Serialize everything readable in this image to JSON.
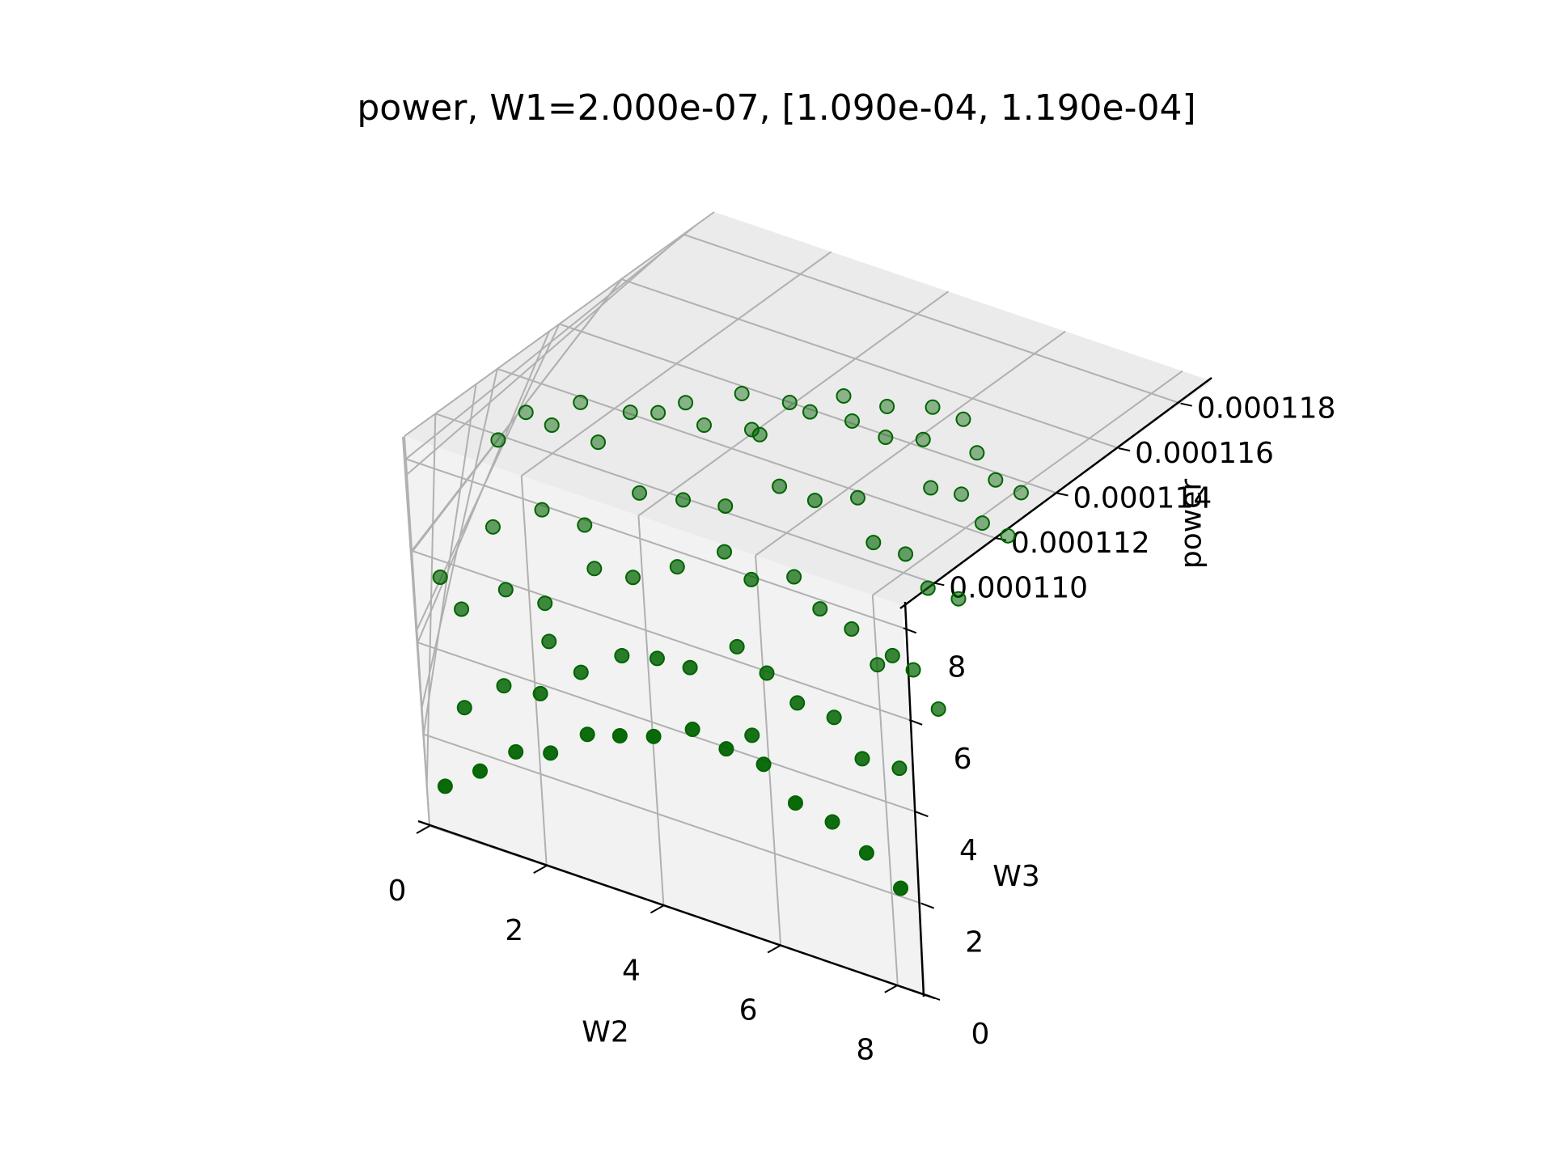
{
  "chart_data": {
    "type": "scatter",
    "projection": "3d",
    "title": "power, W1=2.000e-07, [1.090e-04, 1.190e-04]",
    "xlabel": "W2",
    "ylabel": "W3",
    "zlabel": "power",
    "xlim": [
      0,
      8.5
    ],
    "ylim": [
      0,
      8.5
    ],
    "zlim": [
      0.000109,
      0.000119
    ],
    "x_ticks": [
      "0",
      "2",
      "4",
      "6",
      "8"
    ],
    "y_ticks": [
      "0",
      "2",
      "4",
      "6",
      "8"
    ],
    "z_ticks": [
      "0.000110",
      "0.000112",
      "0.000114",
      "0.000116",
      "0.000118"
    ],
    "grid": true,
    "marker_color": "#006400",
    "pane_colors": [
      "#f2f2f2",
      "#f7f7f7",
      "#ebebeb"
    ],
    "series": [
      {
        "x": [
          0.3,
          0.9,
          1.5,
          2.1,
          2.7,
          3.3,
          3.9,
          4.5,
          5.1,
          5.7,
          6.3,
          6.9,
          7.5,
          8.1,
          0.6,
          1.2,
          1.8,
          2.4,
          3.0,
          3.6,
          4.2,
          4.8,
          5.4,
          6.0,
          6.6,
          7.2,
          7.8,
          0.4,
          1.0,
          1.6,
          2.2,
          2.8,
          3.4,
          4.0,
          4.6,
          5.2,
          5.8,
          6.4,
          7.0,
          7.6,
          8.2,
          0.7,
          1.3,
          1.9,
          2.5,
          3.1,
          3.7,
          4.3,
          4.9,
          5.5,
          6.1,
          6.7,
          7.3,
          7.9,
          0.5,
          1.1,
          1.7,
          2.3,
          2.9,
          3.5,
          4.1,
          4.7,
          5.3,
          5.9,
          6.5,
          7.1,
          7.7,
          8.3,
          0.8,
          1.4,
          2.0,
          2.6,
          3.2,
          3.8,
          4.4,
          5.0,
          5.6,
          6.2,
          6.8,
          7.4,
          8.0,
          0.2,
          1.8,
          3.6,
          5.4,
          7.2
        ],
        "y": [
          0.5,
          0.6,
          0.8,
          0.7,
          0.9,
          0.6,
          0.5,
          0.8,
          0.7,
          0.9,
          0.6,
          0.8,
          0.7,
          0.5,
          2.0,
          2.3,
          1.9,
          2.2,
          2.4,
          2.1,
          1.8,
          2.5,
          2.2,
          2.0,
          2.3,
          1.9,
          2.4,
          3.8,
          4.1,
          3.6,
          4.3,
          3.9,
          4.0,
          4.4,
          3.7,
          4.2,
          3.9,
          4.1,
          3.8,
          4.3,
          4.0,
          5.6,
          5.9,
          5.4,
          6.1,
          5.8,
          5.5,
          6.0,
          5.7,
          6.2,
          5.5,
          5.9,
          5.6,
          6.0,
          7.4,
          7.7,
          7.2,
          7.9,
          7.5,
          7.3,
          7.8,
          7.6,
          7.4,
          7.9,
          7.2,
          7.7,
          7.5,
          7.8,
          8.1,
          8.3,
          8.0,
          8.2,
          8.4,
          8.1,
          8.3,
          8.0,
          8.2,
          8.4,
          8.1,
          8.0,
          8.3,
          5.0,
          3.0,
          7.0,
          1.4,
          3.2
        ],
        "z": [
          0.0001096,
          0.0001102,
          0.0001108,
          0.0001112,
          0.0001118,
          0.0001124,
          0.0001128,
          0.000113,
          0.0001129,
          0.0001126,
          0.0001122,
          0.0001118,
          0.0001114,
          0.000111,
          0.0001101,
          0.0001107,
          0.0001113,
          0.0001119,
          0.0001125,
          0.0001131,
          0.0001135,
          0.0001137,
          0.0001136,
          0.0001133,
          0.0001129,
          0.0001125,
          0.000112,
          0.0001106,
          0.0001112,
          0.0001118,
          0.0001124,
          0.000113,
          0.0001136,
          0.000114,
          0.0001143,
          0.0001142,
          0.0001139,
          0.0001134,
          0.000113,
          0.0001126,
          0.0001121,
          0.000111,
          0.0001116,
          0.0001122,
          0.0001128,
          0.0001134,
          0.000114,
          0.0001145,
          0.0001148,
          0.0001147,
          0.0001144,
          0.0001139,
          0.0001135,
          0.000113,
          0.0001113,
          0.0001119,
          0.0001125,
          0.0001131,
          0.0001137,
          0.0001143,
          0.0001148,
          0.0001152,
          0.0001153,
          0.000115,
          0.0001145,
          0.000114,
          0.0001136,
          0.0001131,
          0.0001115,
          0.0001121,
          0.0001127,
          0.0001133,
          0.0001139,
          0.0001145,
          0.000115,
          0.0001155,
          0.0001157,
          0.0001154,
          0.0001149,
          0.0001144,
          0.0001139,
          0.0001098,
          0.0001115,
          0.0001146,
          0.0001127,
          0.0001141
        ]
      }
    ]
  }
}
